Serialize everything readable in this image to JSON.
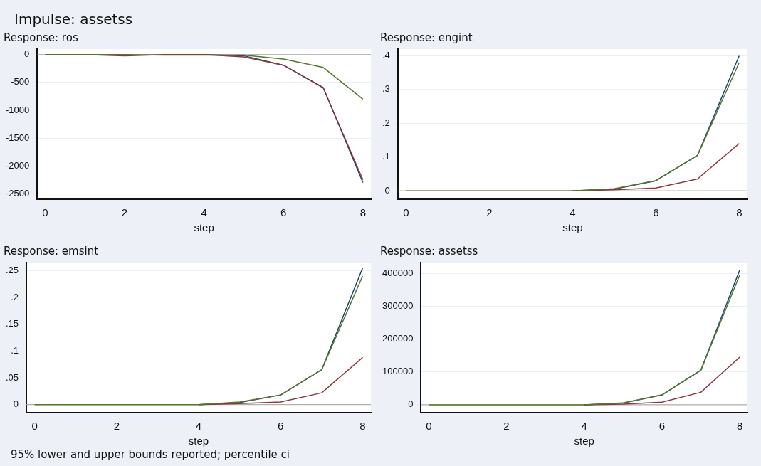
{
  "chart_data": [
    {
      "type": "line",
      "title": "Response: ros",
      "annotations": [
        "Impulse: assetss"
      ],
      "xlabel": "step",
      "x": [
        0,
        1,
        2,
        3,
        4,
        5,
        6,
        7,
        8
      ],
      "xlim": [
        -0.2,
        8.2
      ],
      "xticks": [
        0,
        2,
        4,
        6,
        8
      ],
      "ylim": [
        -2600,
        100
      ],
      "yticks": [
        -2500,
        -2000,
        -1500,
        -1000,
        -500,
        0
      ],
      "grid": "y",
      "ref_lines": [
        {
          "axis": "y",
          "value": 0,
          "color": "#a0a0a0"
        }
      ],
      "marker": "none",
      "series": [
        {
          "color": "#1a476f",
          "values": [
            null,
            null,
            null,
            null,
            0,
            -20,
            -190,
            -590,
            -2300
          ]
        },
        {
          "color": "#90353b",
          "values": [
            null,
            0,
            -20,
            0,
            0,
            -40,
            -190,
            -600,
            -2250
          ]
        },
        {
          "color": "#55752f",
          "values": [
            0,
            0,
            0,
            -10,
            -10,
            -10,
            -80,
            -230,
            -800
          ]
        }
      ]
    },
    {
      "type": "line",
      "title": "Response: engint",
      "xlabel": "step",
      "x": [
        0,
        1,
        2,
        3,
        4,
        5,
        6,
        7,
        8
      ],
      "xlim": [
        -0.2,
        8.2
      ],
      "xticks": [
        0,
        2,
        4,
        6,
        8
      ],
      "ylim": [
        -0.025,
        0.42
      ],
      "yticks": [
        {
          "value": 0,
          "label": "0"
        },
        {
          "value": 0.1,
          "label": ".1"
        },
        {
          "value": 0.2,
          "label": ".2"
        },
        {
          "value": 0.3,
          "label": ".3"
        },
        {
          "value": 0.4,
          "label": ".4"
        }
      ],
      "grid": "y",
      "ref_lines": [
        {
          "axis": "y",
          "value": 0,
          "color": "#a0a0a0"
        }
      ],
      "marker": "none",
      "series": [
        {
          "color": "#1a476f",
          "values": [
            null,
            null,
            null,
            null,
            0,
            0.005,
            0.03,
            0.105,
            0.4
          ]
        },
        {
          "color": "#90353b",
          "values": [
            null,
            null,
            null,
            null,
            0,
            0.003,
            0.008,
            0.035,
            0.14
          ]
        },
        {
          "color": "#55752f",
          "values": [
            0,
            0,
            0,
            0,
            0,
            0.006,
            0.03,
            0.105,
            0.38
          ]
        }
      ]
    },
    {
      "type": "line",
      "title": "Response: emsint",
      "annotations": [
        "95% lower and upper bounds reported; percentile ci"
      ],
      "xlabel": "step",
      "x": [
        0,
        1,
        2,
        3,
        4,
        5,
        6,
        7,
        8
      ],
      "xlim": [
        -0.2,
        8.2
      ],
      "xticks": [
        0,
        2,
        4,
        6,
        8
      ],
      "ylim": [
        -0.015,
        0.265
      ],
      "yticks": [
        {
          "value": 0,
          "label": "0"
        },
        {
          "value": 0.05,
          "label": ".05"
        },
        {
          "value": 0.1,
          "label": ".1"
        },
        {
          "value": 0.15,
          "label": ".15"
        },
        {
          "value": 0.2,
          "label": ".2"
        },
        {
          "value": 0.25,
          "label": ".25"
        }
      ],
      "grid": "y",
      "ref_lines": [
        {
          "axis": "y",
          "value": 0,
          "color": "#a0a0a0"
        }
      ],
      "marker": "none",
      "series": [
        {
          "color": "#1a476f",
          "values": [
            null,
            null,
            null,
            null,
            0,
            0.004,
            0.018,
            0.065,
            0.255
          ]
        },
        {
          "color": "#90353b",
          "values": [
            null,
            null,
            null,
            null,
            0,
            0.002,
            0.005,
            0.022,
            0.088
          ]
        },
        {
          "color": "#55752f",
          "values": [
            0,
            0,
            0,
            0,
            0,
            0.005,
            0.018,
            0.065,
            0.24
          ]
        }
      ]
    },
    {
      "type": "line",
      "title": "Response: assetss",
      "xlabel": "step",
      "x": [
        0,
        1,
        2,
        3,
        4,
        5,
        6,
        7,
        8
      ],
      "xlim": [
        -0.2,
        8.2
      ],
      "xticks": [
        0,
        2,
        4,
        6,
        8
      ],
      "ylim": [
        -24000,
        433000
      ],
      "yticks": [
        0,
        100000,
        200000,
        300000,
        400000
      ],
      "grid": "y",
      "ref_lines": [
        {
          "axis": "y",
          "value": 0,
          "color": "#a0a0a0"
        }
      ],
      "marker": "none",
      "series": [
        {
          "color": "#1a476f",
          "values": [
            null,
            null,
            null,
            null,
            0,
            5000,
            30000,
            105000,
            410000
          ]
        },
        {
          "color": "#90353b",
          "values": [
            null,
            null,
            null,
            null,
            0,
            2000,
            8000,
            38000,
            145000
          ]
        },
        {
          "color": "#55752f",
          "values": [
            0,
            0,
            0,
            0,
            0,
            6000,
            30000,
            105000,
            395000
          ]
        }
      ]
    }
  ]
}
